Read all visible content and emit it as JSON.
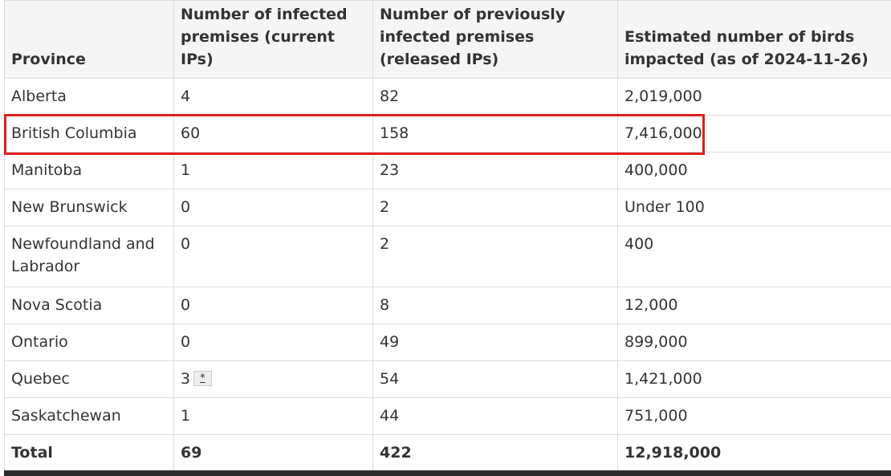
{
  "table": {
    "headers": [
      "Province",
      "Number of infected premises (current IPs)",
      "Number of previously infected premises (released IPs)",
      "Estimated number of birds impacted (as of 2024-11-26)"
    ],
    "rows": [
      {
        "province": "Alberta",
        "current": "4",
        "released": "82",
        "birds": "2,019,000"
      },
      {
        "province": "British Columbia",
        "current": "60",
        "released": "158",
        "birds": "7,416,000"
      },
      {
        "province": "Manitoba",
        "current": "1",
        "released": "23",
        "birds": "400,000"
      },
      {
        "province": "New Brunswick",
        "current": "0",
        "released": "2",
        "birds": "Under 100"
      },
      {
        "province": "Newfoundland and Labrador",
        "current": "0",
        "released": "2",
        "birds": "400"
      },
      {
        "province": "Nova Scotia",
        "current": "0",
        "released": "8",
        "birds": "12,000"
      },
      {
        "province": "Ontario",
        "current": "0",
        "released": "49",
        "birds": "899,000"
      },
      {
        "province": "Quebec",
        "current": "3",
        "released": "54",
        "birds": "1,421,000",
        "footnote": "*"
      },
      {
        "province": "Saskatchewan",
        "current": "1",
        "released": "44",
        "birds": "751,000"
      }
    ],
    "total": {
      "province": "Total",
      "current": "69",
      "released": "422",
      "birds": "12,918,000"
    }
  },
  "highlight": {
    "row": "British Columbia",
    "color": "#e01e1e"
  }
}
